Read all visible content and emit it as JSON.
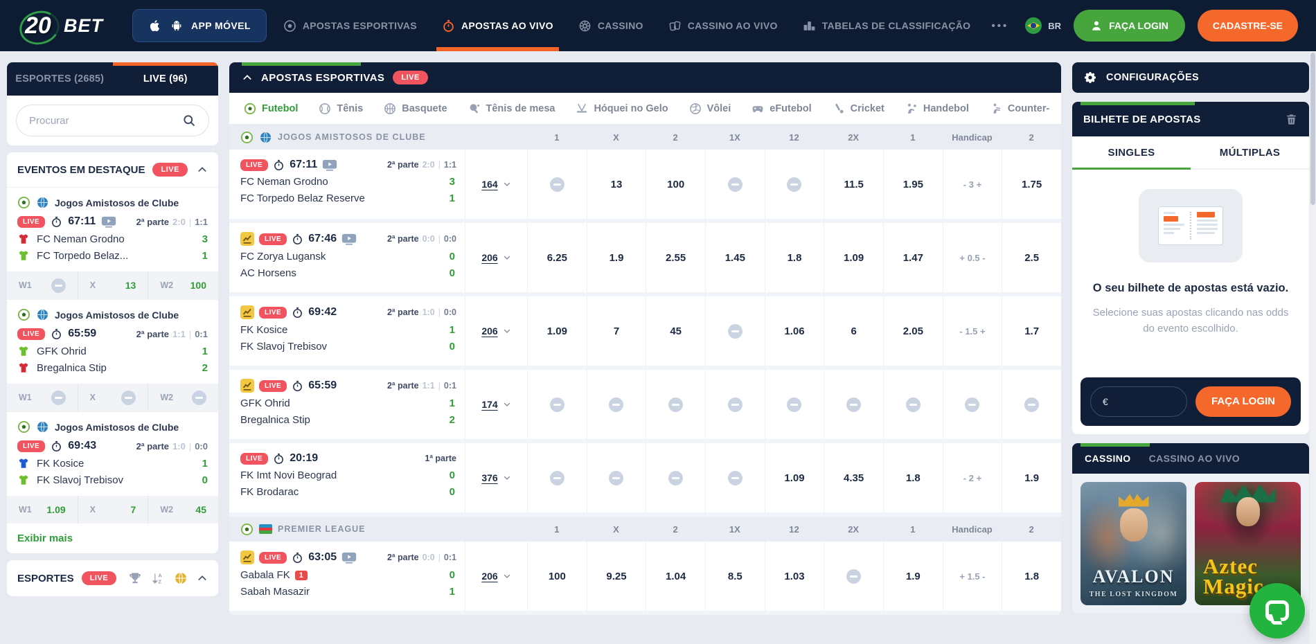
{
  "ui": {
    "live": "LIVE"
  },
  "colors": {
    "navy": "#101e37",
    "orange": "#f4652a",
    "green": "#46a53d",
    "live_red": "#f2545f",
    "odds_green": "#2f9e36"
  },
  "navbar": {
    "logo": {
      "number": "20",
      "text": "BET"
    },
    "app_button": "APP MÓVEL",
    "items": [
      {
        "label": "APOSTAS ESPORTIVAS",
        "icon": "soccer-gray",
        "active": false
      },
      {
        "label": "APOSTAS AO VIVO",
        "icon": "stopwatch-orange",
        "active": true
      },
      {
        "label": "CASSINO",
        "icon": "roulette",
        "active": false
      },
      {
        "label": "CASSINO AO VIVO",
        "icon": "cards",
        "active": false
      },
      {
        "label": "TABELAS DE CLASSIFICAÇÃO",
        "icon": "podium",
        "active": false
      }
    ],
    "more": "•••",
    "language": "BR",
    "login": "FAÇA LOGIN",
    "register": "CADASTRE-SE"
  },
  "sidebar": {
    "tabs": [
      {
        "label": "ESPORTES (2685)",
        "active": false
      },
      {
        "label": "LIVE (96)",
        "active": true
      }
    ],
    "search_placeholder": "Procurar",
    "featured": {
      "title": "EVENTOS EM DESTAQUE",
      "show_more": "Exibir mais",
      "cards": [
        {
          "league": "Jogos Amistosos de Clube",
          "time": "67:11",
          "has_tv": true,
          "period": "2ª parte",
          "score1": "2:0",
          "score2": "1:1",
          "teams": [
            {
              "name": "FC Neman Grodno",
              "jersey": "red",
              "score": "3"
            },
            {
              "name": "FC Torpedo Belaz...",
              "jersey": "green",
              "score": "1"
            }
          ],
          "odds": [
            {
              "label": "W1",
              "value": null
            },
            {
              "label": "X",
              "value": "13"
            },
            {
              "label": "W2",
              "value": "100"
            }
          ]
        },
        {
          "league": "Jogos Amistosos de Clube",
          "time": "65:59",
          "has_tv": false,
          "period": "2ª parte",
          "score1": "1:1",
          "score2": "0:1",
          "teams": [
            {
              "name": "GFK Ohrid",
              "jersey": "green",
              "score": "1"
            },
            {
              "name": "Bregalnica Stip",
              "jersey": "red",
              "score": "2"
            }
          ],
          "odds": [
            {
              "label": "W1",
              "value": null
            },
            {
              "label": "X",
              "value": null
            },
            {
              "label": "W2",
              "value": null
            }
          ]
        },
        {
          "league": "Jogos Amistosos de Clube",
          "time": "69:43",
          "has_tv": false,
          "period": "2ª parte",
          "score1": "1:0",
          "score2": "0:0",
          "teams": [
            {
              "name": "FK Kosice",
              "jersey": "blue",
              "score": "1"
            },
            {
              "name": "FK Slavoj Trebisov",
              "jersey": "green",
              "score": "0"
            }
          ],
          "odds": [
            {
              "label": "W1",
              "value": "1.09"
            },
            {
              "label": "X",
              "value": "7"
            },
            {
              "label": "W2",
              "value": "45"
            }
          ]
        }
      ]
    },
    "sports_section": {
      "title": "ESPORTES"
    }
  },
  "main": {
    "header": {
      "title": "APOSTAS ESPORTIVAS"
    },
    "sport_tabs": [
      {
        "label": "Futebol",
        "icon": "soccer-color",
        "active": true
      },
      {
        "label": "Tênis",
        "icon": "tennis",
        "active": false
      },
      {
        "label": "Basquete",
        "icon": "basketball",
        "active": false
      },
      {
        "label": "Tênis de mesa",
        "icon": "tabletennis",
        "active": false
      },
      {
        "label": "Hóquei no Gelo",
        "icon": "hockey",
        "active": false
      },
      {
        "label": "Vôlei",
        "icon": "volleyball",
        "active": false
      },
      {
        "label": "eFutebol",
        "icon": "efootball",
        "active": false
      },
      {
        "label": "Cricket",
        "icon": "cricket",
        "active": false
      },
      {
        "label": "Handebol",
        "icon": "handball",
        "active": false
      },
      {
        "label": "Counter-",
        "icon": "counterstrike",
        "active": false
      }
    ],
    "columns": [
      "1",
      "X",
      "2",
      "1X",
      "12",
      "2X",
      "1",
      "Handicap",
      "2"
    ],
    "groups": [
      {
        "league": "JOGOS AMISTOSOS DE CLUBE",
        "flag": "globe",
        "rows": [
          {
            "chart": false,
            "time": "67:11",
            "tv": true,
            "period": "2ª parte",
            "score1": "2:0",
            "score2": "1:1",
            "teams": [
              {
                "name": "FC Neman Grodno",
                "score": "3"
              },
              {
                "name": "FC Torpedo Belaz Reserve",
                "score": "1"
              }
            ],
            "markets": "164",
            "odds": [
              "",
              "13",
              "100",
              "",
              "",
              "11.5",
              "1.95",
              "- 3 +",
              "1.75"
            ]
          },
          {
            "chart": true,
            "time": "67:46",
            "tv": true,
            "period": "2ª parte",
            "score1": "0:0",
            "score2": "0:0",
            "teams": [
              {
                "name": "FC Zorya Lugansk",
                "score": "0"
              },
              {
                "name": "AC Horsens",
                "score": "0"
              }
            ],
            "markets": "206",
            "odds": [
              "6.25",
              "1.9",
              "2.55",
              "1.45",
              "1.8",
              "1.09",
              "1.47",
              "+ 0.5 -",
              "2.5"
            ]
          },
          {
            "chart": true,
            "time": "69:42",
            "tv": false,
            "period": "2ª parte",
            "score1": "1:0",
            "score2": "0:0",
            "teams": [
              {
                "name": "FK Kosice",
                "score": "1"
              },
              {
                "name": "FK Slavoj Trebisov",
                "score": "0"
              }
            ],
            "markets": "206",
            "odds": [
              "1.09",
              "7",
              "45",
              "",
              "1.06",
              "6",
              "2.05",
              "- 1.5 +",
              "1.7"
            ]
          },
          {
            "chart": true,
            "time": "65:59",
            "tv": false,
            "period": "2ª parte",
            "score1": "1:1",
            "score2": "0:1",
            "teams": [
              {
                "name": "GFK Ohrid",
                "score": "1"
              },
              {
                "name": "Bregalnica Stip",
                "score": "2"
              }
            ],
            "markets": "174",
            "odds": [
              "",
              "",
              "",
              "",
              "",
              "",
              "",
              "",
              ""
            ]
          },
          {
            "chart": false,
            "time": "20:19",
            "tv": false,
            "period": "1ª parte",
            "score1": null,
            "score2": null,
            "teams": [
              {
                "name": "FK Imt Novi Beograd",
                "score": "0"
              },
              {
                "name": "FK Brodarac",
                "score": "0"
              }
            ],
            "markets": "376",
            "odds": [
              "",
              "",
              "",
              "",
              "1.09",
              "4.35",
              "1.8",
              "- 2 +",
              "1.9"
            ]
          }
        ]
      },
      {
        "league": "PREMIER LEAGUE",
        "flag": "azerbaijan",
        "rows": [
          {
            "chart": true,
            "time": "63:05",
            "tv": true,
            "period": "2ª parte",
            "score1": "0:0",
            "score2": "0:1",
            "teams": [
              {
                "name": "Gabala FK",
                "card": "1",
                "score": "0"
              },
              {
                "name": "Sabah Masazir",
                "score": "1"
              }
            ],
            "markets": "206",
            "odds": [
              "100",
              "9.25",
              "1.04",
              "8.5",
              "1.03",
              "",
              "1.9",
              "+ 1.5 -",
              "1.8"
            ]
          }
        ]
      }
    ]
  },
  "right": {
    "settings": "CONFIGURAÇÕES",
    "betslip": {
      "title": "BILHETE DE APOSTAS",
      "tabs": [
        {
          "label": "SINGLES",
          "active": true
        },
        {
          "label": "MÚLTIPLAS",
          "active": false
        }
      ],
      "empty_title": "O seu bilhete de apostas está vazio.",
      "empty_subtitle": "Selecione suas apostas clicando nas odds do evento escolhido.",
      "currency": "€",
      "login": "FAÇA LOGIN"
    },
    "casino": {
      "tabs": [
        {
          "label": "CASSINO",
          "active": true
        },
        {
          "label": "CASSINO AO VIVO",
          "active": false
        }
      ],
      "games": [
        {
          "title": "AVALON",
          "subtitle": "THE LOST KINGDOM"
        },
        {
          "title": "Aztec Magic"
        }
      ]
    }
  }
}
